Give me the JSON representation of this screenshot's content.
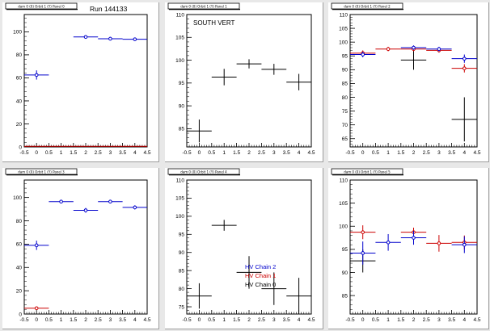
{
  "colors": {
    "black": "#000000",
    "blue": "#0000cc",
    "red": "#cc0000"
  },
  "charts": [
    {
      "type": "scatter",
      "title_tag": "dam 0 (0) Orbit 1 (Y) Panel 0",
      "run_label": "Run 144133",
      "annotation": "",
      "xlim": [
        -0.5,
        4.5
      ],
      "ylim": [
        0,
        115
      ],
      "xticks": [
        "-0.5",
        "0",
        "0.5",
        "1",
        "1.5",
        "2",
        "2.5",
        "3",
        "3.5",
        "4",
        "4.5"
      ],
      "yticks": [
        0,
        20,
        40,
        60,
        80,
        100
      ],
      "series": [
        {
          "color": "blue",
          "markers": true,
          "points": [
            {
              "x": 0,
              "y": 62.5,
              "ex": 0.5,
              "ey": 4
            },
            {
              "x": 2,
              "y": 95.5,
              "ex": 0.5,
              "ey": 1.5
            },
            {
              "x": 3,
              "y": 94,
              "ex": 0.5,
              "ey": 1.5
            },
            {
              "x": 4,
              "y": 93.5,
              "ex": 0.5,
              "ey": 1
            }
          ]
        },
        {
          "color": "red",
          "markers": false,
          "points": [
            {
              "x": 0,
              "y": 0.5,
              "ex": 0.5,
              "ey": 0
            },
            {
              "x": 1,
              "y": 0.5,
              "ex": 0.5,
              "ey": 0
            },
            {
              "x": 2,
              "y": 0.5,
              "ex": 0.5,
              "ey": 0
            },
            {
              "x": 3,
              "y": 0.5,
              "ex": 0.5,
              "ey": 0
            },
            {
              "x": 4,
              "y": 0.5,
              "ex": 0.5,
              "ey": 0
            }
          ]
        }
      ]
    },
    {
      "type": "scatter",
      "title_tag": "dam 0 (0) Orbit 1 (Y) Panel 1",
      "run_label": "",
      "annotation": "SOUTH VERT",
      "xlim": [
        -0.5,
        4.5
      ],
      "ylim": [
        81,
        110
      ],
      "xticks": [
        "-0.5",
        "0",
        "0.5",
        "1",
        "1.5",
        "2",
        "2.5",
        "3",
        "3.5",
        "4",
        "4.5"
      ],
      "yticks": [
        85,
        90,
        95,
        100,
        105,
        110
      ],
      "series": [
        {
          "color": "black",
          "markers": false,
          "points": [
            {
              "x": 0,
              "y": 84.5,
              "ex": 0.5,
              "ey": 2.5
            },
            {
              "x": 1,
              "y": 96.3,
              "ex": 0.5,
              "ey": 1.8
            },
            {
              "x": 2,
              "y": 99.2,
              "ex": 0.5,
              "ey": 1
            },
            {
              "x": 3,
              "y": 98,
              "ex": 0.5,
              "ey": 1.2
            },
            {
              "x": 4,
              "y": 95.2,
              "ex": 0.5,
              "ey": 1.8
            }
          ]
        }
      ]
    },
    {
      "type": "scatter",
      "title_tag": "dam 0 (0) Orbit 1 (Y) Panel 2",
      "run_label": "",
      "annotation": "",
      "xlim": [
        -0.5,
        4.5
      ],
      "ylim": [
        62,
        110
      ],
      "xticks": [
        "-0.5",
        "0",
        "0.5",
        "1",
        "1.5",
        "2",
        "2.5",
        "3",
        "3.5",
        "4",
        "4.5"
      ],
      "yticks": [
        65,
        70,
        75,
        80,
        85,
        90,
        95,
        100,
        105,
        110
      ],
      "series": [
        {
          "color": "black",
          "markers": false,
          "points": [
            {
              "x": 2,
              "y": 93.5,
              "ex": 0.5,
              "ey": 3.5
            },
            {
              "x": 4,
              "y": 72,
              "ex": 0.5,
              "ey": 8
            }
          ]
        },
        {
          "color": "red",
          "markers": true,
          "points": [
            {
              "x": 0,
              "y": 96,
              "ex": 0.5,
              "ey": 1
            },
            {
              "x": 1,
              "y": 97.5,
              "ex": 0.5,
              "ey": 0.8
            },
            {
              "x": 2,
              "y": 97.5,
              "ex": 0.5,
              "ey": 0.8
            },
            {
              "x": 3,
              "y": 97,
              "ex": 0.5,
              "ey": 0.8
            },
            {
              "x": 4,
              "y": 90.5,
              "ex": 0.5,
              "ey": 1.5
            }
          ]
        },
        {
          "color": "blue",
          "markers": true,
          "points": [
            {
              "x": 0,
              "y": 95.5,
              "ex": 0.5,
              "ey": 1
            },
            {
              "x": 2,
              "y": 98,
              "ex": 0.5,
              "ey": 0.8
            },
            {
              "x": 3,
              "y": 97.5,
              "ex": 0.5,
              "ey": 0.8
            },
            {
              "x": 4,
              "y": 94,
              "ex": 0.5,
              "ey": 1.5
            }
          ]
        }
      ]
    },
    {
      "type": "scatter",
      "title_tag": "dam 0 (0) Orbit 1 (Y) Panel 3",
      "run_label": "",
      "annotation": "",
      "xlim": [
        -0.5,
        4.5
      ],
      "ylim": [
        0,
        115
      ],
      "xticks": [
        "-0.5",
        "0",
        "0.5",
        "1",
        "1.5",
        "2",
        "2.5",
        "3",
        "3.5",
        "4",
        "4.5"
      ],
      "yticks": [
        0,
        20,
        40,
        60,
        80,
        100
      ],
      "series": [
        {
          "color": "blue",
          "markers": true,
          "points": [
            {
              "x": 0,
              "y": 59,
              "ex": 0.5,
              "ey": 4
            },
            {
              "x": 1,
              "y": 96.5,
              "ex": 0.5,
              "ey": 1.5
            },
            {
              "x": 2,
              "y": 89,
              "ex": 0.5,
              "ey": 2
            },
            {
              "x": 3,
              "y": 96.5,
              "ex": 0.5,
              "ey": 1.5
            },
            {
              "x": 4,
              "y": 91.5,
              "ex": 0.5,
              "ey": 1.8
            }
          ]
        },
        {
          "color": "red",
          "markers": true,
          "points": [
            {
              "x": 0,
              "y": 5,
              "ex": 0.5,
              "ey": 1
            }
          ]
        }
      ]
    },
    {
      "type": "scatter",
      "title_tag": "dam 0 (0) Orbit 1 (Y) Panel 4",
      "run_label": "",
      "annotation": "",
      "xlim": [
        -0.5,
        4.5
      ],
      "ylim": [
        73,
        110
      ],
      "xticks": [
        "-0.5",
        "0",
        "0.5",
        "1",
        "1.5",
        "2",
        "2.5",
        "3",
        "3.5",
        "4",
        "4.5"
      ],
      "yticks": [
        75,
        80,
        85,
        90,
        95,
        100,
        105,
        110
      ],
      "legend": [
        "HV Chain 2",
        "HV Chain 1",
        "HV Chain 0"
      ],
      "legend_colors": [
        "blue",
        "red",
        "black"
      ],
      "series": [
        {
          "color": "black",
          "markers": false,
          "points": [
            {
              "x": 0,
              "y": 78,
              "ex": 0.5,
              "ey": 3.5
            },
            {
              "x": 1,
              "y": 97.5,
              "ex": 0.5,
              "ey": 1.5
            },
            {
              "x": 2,
              "y": 84.5,
              "ex": 0.5,
              "ey": 4.5
            },
            {
              "x": 3,
              "y": 80,
              "ex": 0.5,
              "ey": 4.5
            },
            {
              "x": 4,
              "y": 78,
              "ex": 0.5,
              "ey": 5
            }
          ]
        }
      ]
    },
    {
      "type": "scatter",
      "title_tag": "dam 0 (0) Orbit 1 (Y) Panel 5",
      "run_label": "",
      "annotation": "",
      "xlim": [
        -0.5,
        4.5
      ],
      "ylim": [
        81,
        110
      ],
      "xticks": [
        "-0.5",
        "0",
        "0.5",
        "1",
        "1.5",
        "2",
        "2.5",
        "3",
        "3.5",
        "4",
        "4.5"
      ],
      "yticks": [
        85,
        90,
        95,
        100,
        105,
        110
      ],
      "series": [
        {
          "color": "black",
          "markers": false,
          "points": [
            {
              "x": 0,
              "y": 92.5,
              "ex": 0.5,
              "ey": 2.5
            }
          ]
        },
        {
          "color": "red",
          "markers": true,
          "points": [
            {
              "x": 0,
              "y": 98.7,
              "ex": 0.5,
              "ey": 1.5
            },
            {
              "x": 2,
              "y": 98.7,
              "ex": 0.5,
              "ey": 1
            },
            {
              "x": 3,
              "y": 96.3,
              "ex": 0.5,
              "ey": 1.8
            },
            {
              "x": 4,
              "y": 96.5,
              "ex": 0.5,
              "ey": 1.5
            }
          ]
        },
        {
          "color": "blue",
          "markers": true,
          "points": [
            {
              "x": 0,
              "y": 94.2,
              "ex": 0.5,
              "ey": 2.5
            },
            {
              "x": 1,
              "y": 96.5,
              "ex": 0.5,
              "ey": 1.8
            },
            {
              "x": 2,
              "y": 97.5,
              "ex": 0.5,
              "ey": 1.5
            },
            {
              "x": 4,
              "y": 96,
              "ex": 0.5,
              "ey": 1.8
            }
          ]
        }
      ]
    }
  ]
}
